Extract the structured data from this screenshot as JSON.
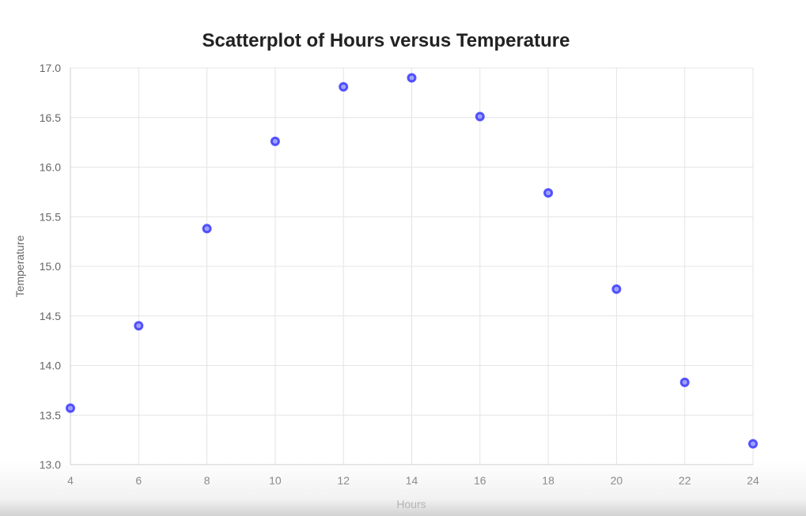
{
  "chart_data": {
    "type": "scatter",
    "title": "Scatterplot of Hours versus Temperature",
    "xlabel": "Hours",
    "ylabel": "Temperature",
    "xlim": [
      4,
      24
    ],
    "ylim": [
      13.0,
      17.0
    ],
    "xticks": [
      "4",
      "6",
      "8",
      "10",
      "12",
      "14",
      "16",
      "18",
      "20",
      "22",
      "24"
    ],
    "yticks": [
      "13.0",
      "13.5",
      "14.0",
      "14.5",
      "15.0",
      "15.5",
      "16.0",
      "16.5",
      "17.0"
    ],
    "grid": true,
    "legend": "none",
    "point_color": "#3a3aff",
    "series": [
      {
        "x": [
          4,
          6,
          8,
          10,
          12,
          14,
          16,
          18,
          20,
          22,
          24
        ],
        "y": [
          13.57,
          14.4,
          15.38,
          16.26,
          16.81,
          16.9,
          16.51,
          15.74,
          14.77,
          13.83,
          13.21
        ]
      }
    ]
  }
}
